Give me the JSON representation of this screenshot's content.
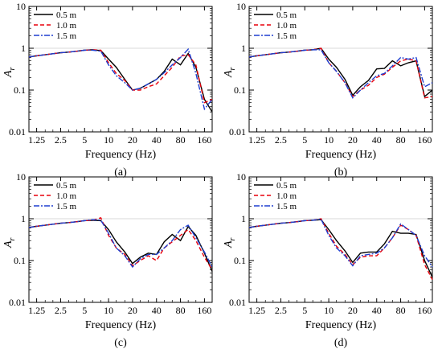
{
  "colors": {
    "axis": "#000000",
    "grid": "#cccccc"
  },
  "chart_data": [
    {
      "type": "line",
      "panel_label": "(a)",
      "xlabel": "Frequency (Hz)",
      "ylabel": "A_r",
      "ylabel_main": "A",
      "ylabel_sub": "r",
      "x_scale": "log",
      "y_scale": "log",
      "xlim": [
        1.0,
        200
      ],
      "ylim": [
        0.01,
        10
      ],
      "x_ticks": [
        "1.25",
        "2.5",
        "5",
        "10",
        "20",
        "40",
        "80",
        "160"
      ],
      "x_tick_values": [
        1.25,
        2.5,
        5,
        10,
        20,
        40,
        80,
        160
      ],
      "y_ticks": [
        "0.01",
        "0.1",
        "1",
        "10"
      ],
      "y_tick_values": [
        0.01,
        0.1,
        1,
        10
      ],
      "grid": "horizontal at y=1 only",
      "legend_position": "top-left",
      "x": [
        1.0,
        1.25,
        1.6,
        2.0,
        2.5,
        3.15,
        4.0,
        5.0,
        6.3,
        8.0,
        10,
        12.5,
        16,
        20,
        25,
        31.5,
        40,
        50,
        63,
        80,
        100,
        125,
        160,
        200
      ],
      "series": [
        {
          "name": "0.5 m",
          "color": "#000000",
          "dash": "solid",
          "values": [
            0.62,
            0.66,
            0.7,
            0.74,
            0.78,
            0.81,
            0.85,
            0.9,
            0.92,
            0.88,
            0.55,
            0.35,
            0.18,
            0.1,
            0.11,
            0.14,
            0.18,
            0.28,
            0.55,
            0.4,
            0.75,
            0.35,
            0.06,
            0.03
          ]
        },
        {
          "name": "1.0 m",
          "color": "#e8000b",
          "dash": "dashed",
          "values": [
            0.62,
            0.66,
            0.7,
            0.74,
            0.78,
            0.81,
            0.85,
            0.9,
            0.92,
            0.9,
            0.45,
            0.25,
            0.17,
            0.1,
            0.1,
            0.12,
            0.14,
            0.22,
            0.35,
            0.65,
            0.7,
            0.4,
            0.05,
            0.06
          ]
        },
        {
          "name": "1.5 m",
          "color": "#1f3fd0",
          "dash": "dashdot",
          "values": [
            0.62,
            0.66,
            0.7,
            0.74,
            0.78,
            0.81,
            0.85,
            0.9,
            0.9,
            0.85,
            0.4,
            0.22,
            0.15,
            0.1,
            0.11,
            0.14,
            0.18,
            0.26,
            0.4,
            0.6,
            0.95,
            0.25,
            0.035,
            0.06
          ]
        }
      ]
    },
    {
      "type": "line",
      "panel_label": "(b)",
      "xlabel": "Frequency (Hz)",
      "ylabel": "A_r",
      "ylabel_main": "A",
      "ylabel_sub": "r",
      "x_scale": "log",
      "y_scale": "log",
      "xlim": [
        1.0,
        200
      ],
      "ylim": [
        0.01,
        10
      ],
      "x_ticks": [
        "1.25",
        "2.5",
        "5",
        "10",
        "20",
        "40",
        "80",
        "160"
      ],
      "x_tick_values": [
        1.25,
        2.5,
        5,
        10,
        20,
        40,
        80,
        160
      ],
      "y_ticks": [
        "0.01",
        "0.1",
        "1",
        "10"
      ],
      "y_tick_values": [
        0.01,
        0.1,
        1,
        10
      ],
      "grid": "horizontal at y=1 only",
      "legend_position": "top-left",
      "x": [
        1.0,
        1.25,
        1.6,
        2.0,
        2.5,
        3.15,
        4.0,
        5.0,
        6.3,
        8.0,
        10,
        12.5,
        16,
        20,
        25,
        31.5,
        40,
        50,
        63,
        80,
        100,
        125,
        160,
        200
      ],
      "series": [
        {
          "name": "0.5 m",
          "color": "#000000",
          "dash": "solid",
          "values": [
            0.62,
            0.66,
            0.7,
            0.74,
            0.78,
            0.81,
            0.85,
            0.9,
            0.92,
            1.0,
            0.55,
            0.35,
            0.18,
            0.075,
            0.12,
            0.17,
            0.32,
            0.33,
            0.5,
            0.38,
            0.45,
            0.5,
            0.07,
            0.1
          ]
        },
        {
          "name": "1.0 m",
          "color": "#e8000b",
          "dash": "dashed",
          "values": [
            0.62,
            0.66,
            0.7,
            0.74,
            0.78,
            0.81,
            0.85,
            0.9,
            0.92,
            1.0,
            0.45,
            0.28,
            0.15,
            0.07,
            0.1,
            0.13,
            0.2,
            0.24,
            0.35,
            0.5,
            0.55,
            0.5,
            0.065,
            0.07
          ]
        },
        {
          "name": "1.5 m",
          "color": "#1f3fd0",
          "dash": "dashdot",
          "values": [
            0.62,
            0.66,
            0.7,
            0.74,
            0.78,
            0.81,
            0.85,
            0.9,
            0.92,
            0.92,
            0.45,
            0.28,
            0.15,
            0.065,
            0.1,
            0.15,
            0.22,
            0.25,
            0.38,
            0.6,
            0.55,
            0.6,
            0.12,
            0.15
          ]
        }
      ]
    },
    {
      "type": "line",
      "panel_label": "(c)",
      "xlabel": "Frequency (Hz)",
      "ylabel": "A_r",
      "ylabel_main": "A",
      "ylabel_sub": "r",
      "x_scale": "log",
      "y_scale": "log",
      "xlim": [
        1.0,
        200
      ],
      "ylim": [
        0.01,
        10
      ],
      "x_ticks": [
        "1.25",
        "2.5",
        "5",
        "10",
        "20",
        "40",
        "80",
        "160"
      ],
      "x_tick_values": [
        1.25,
        2.5,
        5,
        10,
        20,
        40,
        80,
        160
      ],
      "y_ticks": [
        "0.01",
        "0.1",
        "1",
        "10"
      ],
      "y_tick_values": [
        0.01,
        0.1,
        1,
        10
      ],
      "grid": "horizontal at y=1 only",
      "legend_position": "top-left",
      "x": [
        1.0,
        1.25,
        1.6,
        2.0,
        2.5,
        3.15,
        4.0,
        5.0,
        6.3,
        8.0,
        10,
        12.5,
        16,
        20,
        25,
        31.5,
        40,
        50,
        63,
        80,
        100,
        125,
        160,
        200
      ],
      "series": [
        {
          "name": "0.5 m",
          "color": "#000000",
          "dash": "solid",
          "values": [
            0.62,
            0.66,
            0.7,
            0.74,
            0.78,
            0.81,
            0.85,
            0.9,
            0.92,
            0.9,
            0.55,
            0.28,
            0.16,
            0.085,
            0.12,
            0.15,
            0.14,
            0.28,
            0.42,
            0.3,
            0.65,
            0.4,
            0.15,
            0.055
          ]
        },
        {
          "name": "1.0 m",
          "color": "#e8000b",
          "dash": "dashed",
          "values": [
            0.62,
            0.66,
            0.7,
            0.74,
            0.78,
            0.81,
            0.85,
            0.9,
            0.92,
            1.05,
            0.4,
            0.2,
            0.14,
            0.075,
            0.1,
            0.13,
            0.1,
            0.2,
            0.28,
            0.4,
            0.55,
            0.3,
            0.12,
            0.06
          ]
        },
        {
          "name": "1.5 m",
          "color": "#1f3fd0",
          "dash": "dashdot",
          "values": [
            0.62,
            0.66,
            0.7,
            0.74,
            0.78,
            0.81,
            0.85,
            0.9,
            0.95,
            0.92,
            0.45,
            0.2,
            0.13,
            0.07,
            0.11,
            0.14,
            0.14,
            0.2,
            0.3,
            0.55,
            0.7,
            0.35,
            0.16,
            0.07
          ]
        }
      ]
    },
    {
      "type": "line",
      "panel_label": "(d)",
      "xlabel": "Frequency (Hz)",
      "ylabel": "A_r",
      "ylabel_main": "A",
      "ylabel_sub": "r",
      "x_scale": "log",
      "y_scale": "log",
      "xlim": [
        1.0,
        200
      ],
      "ylim": [
        0.01,
        10
      ],
      "x_ticks": [
        "1.25",
        "2.5",
        "5",
        "10",
        "20",
        "40",
        "80",
        "160"
      ],
      "x_tick_values": [
        1.25,
        2.5,
        5,
        10,
        20,
        40,
        80,
        160
      ],
      "y_ticks": [
        "0.01",
        "0.1",
        "1",
        "10"
      ],
      "y_tick_values": [
        0.01,
        0.1,
        1,
        10
      ],
      "grid": "horizontal at y=1 only",
      "legend_position": "top-left",
      "x": [
        1.0,
        1.25,
        1.6,
        2.0,
        2.5,
        3.15,
        4.0,
        5.0,
        6.3,
        8.0,
        10,
        12.5,
        16,
        20,
        25,
        31.5,
        40,
        50,
        63,
        80,
        100,
        125,
        160,
        200
      ],
      "series": [
        {
          "name": "0.5 m",
          "color": "#000000",
          "dash": "solid",
          "values": [
            0.62,
            0.66,
            0.7,
            0.74,
            0.78,
            0.81,
            0.85,
            0.9,
            0.92,
            0.95,
            0.55,
            0.3,
            0.17,
            0.09,
            0.15,
            0.16,
            0.16,
            0.25,
            0.5,
            0.45,
            0.45,
            0.42,
            0.1,
            0.04
          ]
        },
        {
          "name": "1.0 m",
          "color": "#e8000b",
          "dash": "dashed",
          "values": [
            0.62,
            0.66,
            0.7,
            0.74,
            0.78,
            0.81,
            0.85,
            0.9,
            0.92,
            1.0,
            0.45,
            0.22,
            0.14,
            0.08,
            0.12,
            0.13,
            0.13,
            0.2,
            0.35,
            0.7,
            0.55,
            0.4,
            0.08,
            0.035
          ]
        },
        {
          "name": "1.5 m",
          "color": "#1f3fd0",
          "dash": "dashdot",
          "values": [
            0.62,
            0.66,
            0.7,
            0.74,
            0.78,
            0.81,
            0.85,
            0.9,
            0.92,
            0.98,
            0.4,
            0.2,
            0.13,
            0.075,
            0.13,
            0.14,
            0.15,
            0.2,
            0.35,
            0.75,
            0.55,
            0.4,
            0.13,
            0.07
          ]
        }
      ]
    }
  ]
}
